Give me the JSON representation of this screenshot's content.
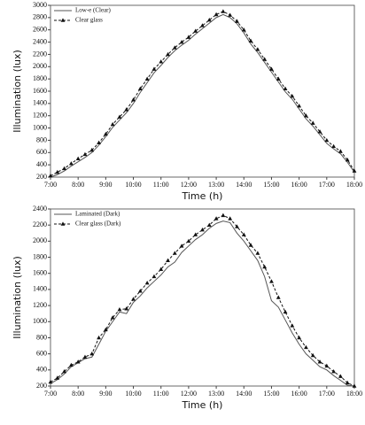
{
  "chart_data": [
    {
      "type": "line",
      "xlabel": "Time (h)",
      "ylabel": "Illumination (lux)",
      "x": [
        7,
        7.25,
        7.5,
        7.75,
        8,
        8.25,
        8.5,
        8.75,
        9,
        9.25,
        9.5,
        9.75,
        10,
        10.25,
        10.5,
        10.75,
        11,
        11.25,
        11.5,
        11.75,
        12,
        12.25,
        12.5,
        12.75,
        13,
        13.25,
        13.5,
        13.75,
        14,
        14.25,
        14.5,
        14.75,
        15,
        15.25,
        15.5,
        15.75,
        16,
        16.25,
        16.5,
        16.75,
        17,
        17.25,
        17.5,
        17.75,
        18
      ],
      "series": [
        {
          "name": "Low-e (Clear)",
          "color": "#555555",
          "line_style": "solid",
          "marker": "none",
          "values": [
            200,
            240,
            300,
            380,
            450,
            520,
            600,
            720,
            860,
            1010,
            1130,
            1250,
            1400,
            1580,
            1740,
            1900,
            2020,
            2150,
            2260,
            2350,
            2430,
            2530,
            2620,
            2710,
            2800,
            2850,
            2800,
            2700,
            2550,
            2370,
            2230,
            2070,
            1910,
            1750,
            1590,
            1470,
            1310,
            1150,
            1030,
            890,
            750,
            660,
            580,
            440,
            280
          ]
        },
        {
          "name": "Clear glass",
          "color": "#111111",
          "line_style": "dashed",
          "marker": "triangle",
          "values": [
            220,
            280,
            340,
            420,
            500,
            570,
            640,
            760,
            900,
            1060,
            1180,
            1300,
            1460,
            1640,
            1800,
            1960,
            2080,
            2200,
            2310,
            2400,
            2480,
            2580,
            2670,
            2760,
            2850,
            2900,
            2840,
            2740,
            2600,
            2420,
            2280,
            2120,
            1960,
            1800,
            1640,
            1520,
            1360,
            1200,
            1080,
            940,
            800,
            700,
            620,
            480,
            300
          ]
        }
      ],
      "xlim": [
        7,
        18
      ],
      "xticks": [
        {
          "value": 7,
          "label": "7:00"
        },
        {
          "value": 8,
          "label": "8:00"
        },
        {
          "value": 9,
          "label": "9:00"
        },
        {
          "value": 10,
          "label": "10:00"
        },
        {
          "value": 11,
          "label": "11:00"
        },
        {
          "value": 12,
          "label": "12:00"
        },
        {
          "value": 13,
          "label": "13:00"
        },
        {
          "value": 14,
          "label": "14:00"
        },
        {
          "value": 15,
          "label": "15:00"
        },
        {
          "value": 16,
          "label": "16:00"
        },
        {
          "value": 17,
          "label": "17:00"
        },
        {
          "value": 18,
          "label": "18:00"
        }
      ],
      "ylim": [
        200,
        3000
      ],
      "yticks": [
        200,
        400,
        600,
        800,
        1000,
        1200,
        1400,
        1600,
        1800,
        2000,
        2200,
        2400,
        2600,
        2800,
        3000
      ],
      "legend": "upper left"
    },
    {
      "type": "line",
      "xlabel": "Time (h)",
      "ylabel": "Illumination (lux)",
      "x": [
        7,
        7.25,
        7.5,
        7.75,
        8,
        8.25,
        8.5,
        8.75,
        9,
        9.25,
        9.5,
        9.75,
        10,
        10.25,
        10.5,
        10.75,
        11,
        11.25,
        11.5,
        11.75,
        12,
        12.25,
        12.5,
        12.75,
        13,
        13.25,
        13.5,
        13.75,
        14,
        14.25,
        14.5,
        14.75,
        15,
        15.25,
        15.5,
        15.75,
        16,
        16.25,
        16.5,
        16.75,
        17,
        17.25,
        17.5,
        17.75,
        18
      ],
      "series": [
        {
          "name": "Laminated (Dark)",
          "color": "#555555",
          "line_style": "solid",
          "marker": "none",
          "values": [
            230,
            280,
            350,
            440,
            490,
            540,
            560,
            720,
            880,
            1000,
            1120,
            1100,
            1240,
            1320,
            1420,
            1500,
            1580,
            1680,
            1740,
            1860,
            1940,
            2020,
            2080,
            2160,
            2220,
            2250,
            2230,
            2100,
            2000,
            1880,
            1760,
            1560,
            1260,
            1180,
            1020,
            860,
            720,
            600,
            520,
            440,
            400,
            330,
            270,
            210,
            200
          ]
        },
        {
          "name": "Clear glass (Dark)",
          "color": "#111111",
          "line_style": "dashed",
          "marker": "triangle",
          "values": [
            250,
            300,
            380,
            460,
            500,
            560,
            600,
            800,
            900,
            1050,
            1150,
            1160,
            1280,
            1380,
            1480,
            1560,
            1650,
            1760,
            1850,
            1940,
            2000,
            2080,
            2140,
            2200,
            2280,
            2320,
            2280,
            2180,
            2080,
            1950,
            1850,
            1680,
            1500,
            1300,
            1120,
            950,
            800,
            680,
            580,
            500,
            450,
            380,
            320,
            240,
            200
          ]
        }
      ],
      "xlim": [
        7,
        18
      ],
      "xticks": [
        {
          "value": 7,
          "label": "7:00"
        },
        {
          "value": 8,
          "label": "8:00"
        },
        {
          "value": 9,
          "label": "9:00"
        },
        {
          "value": 10,
          "label": "10:00"
        },
        {
          "value": 11,
          "label": "11:00"
        },
        {
          "value": 12,
          "label": "12:00"
        },
        {
          "value": 13,
          "label": "13:00"
        },
        {
          "value": 14,
          "label": "14:00"
        },
        {
          "value": 15,
          "label": "15:00"
        },
        {
          "value": 16,
          "label": "16:00"
        },
        {
          "value": 17,
          "label": "17:00"
        },
        {
          "value": 18,
          "label": "18:00"
        }
      ],
      "ylim": [
        200,
        2400
      ],
      "yticks": [
        200,
        400,
        600,
        800,
        1000,
        1200,
        1400,
        1600,
        1800,
        2000,
        2200,
        2400
      ],
      "legend": "upper left"
    }
  ]
}
